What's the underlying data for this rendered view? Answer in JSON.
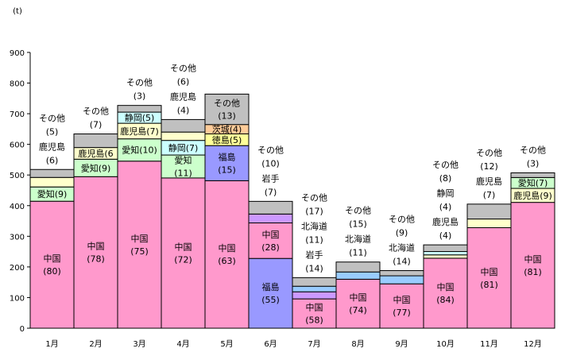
{
  "chart_data": {
    "type": "bar",
    "subtype": "variable-width stacked (marimekko)",
    "unit_label": "(t)",
    "ylim": [
      0,
      900
    ],
    "yticks": [
      "0",
      "100",
      "200",
      "300",
      "400",
      "500",
      "600",
      "700",
      "800",
      "900"
    ],
    "grid": false,
    "months": [
      {
        "label": "1月",
        "total": 518,
        "segments": [
          {
            "name": "中国",
            "share": 80,
            "share_text": "(80)",
            "label_pos": "inside",
            "color": "#ff99cc"
          },
          {
            "name": "愛知",
            "share": 9,
            "share_text": "(9)",
            "label_pos": "inside-left",
            "color": "#ccffcc"
          },
          {
            "name": "鹿児島",
            "share": 6,
            "share_text": "(6)",
            "label_pos": "above",
            "color": "#ffffcc"
          },
          {
            "name": "その他",
            "share": 5,
            "share_text": "(5)",
            "label_pos": "above",
            "color": "#c0c0c0"
          }
        ]
      },
      {
        "label": "2月",
        "total": 634,
        "segments": [
          {
            "name": "中国",
            "share": 78,
            "share_text": "(78)",
            "label_pos": "inside",
            "color": "#ff99cc"
          },
          {
            "name": "愛知",
            "share": 9,
            "share_text": "(9)",
            "label_pos": "inside-inline",
            "color": "#ccffcc"
          },
          {
            "name": "鹿児島",
            "share": 6,
            "share_text": "(6",
            "label_pos": "inside-inline",
            "color": "#ffffcc"
          },
          {
            "name": "その他",
            "share": 7,
            "share_text": "(7)",
            "label_pos": "above",
            "color": "#c0c0c0"
          }
        ]
      },
      {
        "label": "3月",
        "total": 727,
        "segments": [
          {
            "name": "中国",
            "share": 75,
            "share_text": "(75)",
            "label_pos": "inside",
            "color": "#ff99cc"
          },
          {
            "name": "愛知",
            "share": 10,
            "share_text": "(10)",
            "label_pos": "inside-inline",
            "color": "#ccffcc"
          },
          {
            "name": "鹿児島",
            "share": 7,
            "share_text": "(7)",
            "label_pos": "inside-inline",
            "color": "#ffffcc"
          },
          {
            "name": "静岡",
            "share": 5,
            "share_text": "(5)",
            "label_pos": "inside-inline",
            "color": "#ccffff"
          },
          {
            "name": "その他",
            "share": 3,
            "share_text": "(3)",
            "label_pos": "above",
            "color": "#c0c0c0"
          }
        ]
      },
      {
        "label": "4月",
        "total": 681,
        "segments": [
          {
            "name": "中国",
            "share": 72,
            "share_text": "(72)",
            "label_pos": "inside",
            "color": "#ff99cc"
          },
          {
            "name": "愛知",
            "share": 11,
            "share_text": "(11)",
            "label_pos": "inside",
            "color": "#ccffcc"
          },
          {
            "name": "静岡",
            "share": 7,
            "share_text": "(7)",
            "label_pos": "inside-inline",
            "color": "#ccffff"
          },
          {
            "name": "鹿児島",
            "share": 4,
            "share_text": "(4)",
            "label_pos": "above",
            "color": "#ffffcc"
          },
          {
            "name": "その他",
            "share": 6,
            "share_text": "(6)",
            "label_pos": "above",
            "color": "#c0c0c0"
          }
        ]
      },
      {
        "label": "5月",
        "total": 764,
        "segments": [
          {
            "name": "中国",
            "share": 63,
            "share_text": "(63)",
            "label_pos": "inside",
            "color": "#ff99cc"
          },
          {
            "name": "福島",
            "share": 15,
            "share_text": "(15)",
            "label_pos": "inside",
            "color": "#9999ff"
          },
          {
            "name": "徳島",
            "share": 5,
            "share_text": "(5)",
            "label_pos": "inside-inline",
            "color": "#ffff99"
          },
          {
            "name": "茨城",
            "share": 4,
            "share_text": "(4)",
            "label_pos": "inside-inline",
            "color": "#ffcc99"
          },
          {
            "name": "その他",
            "share": 13,
            "share_text": "(13)",
            "label_pos": "inside",
            "color": "#c0c0c0"
          }
        ]
      },
      {
        "label": "6月",
        "total": 414,
        "segments": [
          {
            "name": "福島",
            "share": 55,
            "share_text": "(55)",
            "label_pos": "inside",
            "color": "#9999ff"
          },
          {
            "name": "中国",
            "share": 28,
            "share_text": "(28)",
            "label_pos": "inside",
            "color": "#ff99cc"
          },
          {
            "name": "岩手",
            "share": 7,
            "share_text": "(7)",
            "label_pos": "above",
            "color": "#cc99ff"
          },
          {
            "name": "その他",
            "share": 10,
            "share_text": "(10)",
            "label_pos": "above",
            "color": "#c0c0c0"
          }
        ]
      },
      {
        "label": "7月",
        "total": 165,
        "segments": [
          {
            "name": "中国",
            "share": 58,
            "share_text": "(58)",
            "label_pos": "inside",
            "color": "#ff99cc"
          },
          {
            "name": "岩手",
            "share": 14,
            "share_text": "(14)",
            "label_pos": "above",
            "color": "#cc99ff"
          },
          {
            "name": "北海道",
            "share": 11,
            "share_text": "(11)",
            "label_pos": "above",
            "color": "#99ccff"
          },
          {
            "name": "その他",
            "share": 17,
            "share_text": "(17)",
            "label_pos": "above",
            "color": "#c0c0c0"
          }
        ]
      },
      {
        "label": "8月",
        "total": 216,
        "segments": [
          {
            "name": "中国",
            "share": 74,
            "share_text": "(74)",
            "label_pos": "inside",
            "color": "#ff99cc"
          },
          {
            "name": "北海道",
            "share": 11,
            "share_text": "(11)",
            "label_pos": "above",
            "color": "#99ccff"
          },
          {
            "name": "その他",
            "share": 15,
            "share_text": "(15)",
            "label_pos": "above",
            "color": "#c0c0c0"
          }
        ]
      },
      {
        "label": "9月",
        "total": 188,
        "segments": [
          {
            "name": "中国",
            "share": 77,
            "share_text": "(77)",
            "label_pos": "inside",
            "color": "#ff99cc"
          },
          {
            "name": "北海道",
            "share": 14,
            "share_text": "(14)",
            "label_pos": "above",
            "color": "#99ccff"
          },
          {
            "name": "その他",
            "share": 9,
            "share_text": "(9)",
            "label_pos": "above",
            "color": "#c0c0c0"
          }
        ]
      },
      {
        "label": "10月",
        "total": 272,
        "segments": [
          {
            "name": "中国",
            "share": 84,
            "share_text": "(84)",
            "label_pos": "inside",
            "color": "#ff99cc"
          },
          {
            "name": "鹿児島",
            "share": 4,
            "share_text": "(4)",
            "label_pos": "above",
            "color": "#ffffcc"
          },
          {
            "name": "静岡",
            "share": 4,
            "share_text": "(4)",
            "label_pos": "above",
            "color": "#ccffff"
          },
          {
            "name": "その他",
            "share": 8,
            "share_text": "(8)",
            "label_pos": "above",
            "color": "#c0c0c0"
          }
        ]
      },
      {
        "label": "11月",
        "total": 405,
        "segments": [
          {
            "name": "中国",
            "share": 81,
            "share_text": "(81)",
            "label_pos": "inside",
            "color": "#ff99cc"
          },
          {
            "name": "鹿児島",
            "share": 7,
            "share_text": "(7)",
            "label_pos": "above",
            "color": "#ffffcc"
          },
          {
            "name": "その他",
            "share": 12,
            "share_text": "(12)",
            "label_pos": "above",
            "color": "#c0c0c0"
          }
        ]
      },
      {
        "label": "12月",
        "total": 507,
        "segments": [
          {
            "name": "中国",
            "share": 81,
            "share_text": "(81)",
            "label_pos": "inside",
            "color": "#ff99cc"
          },
          {
            "name": "鹿児島",
            "share": 9,
            "share_text": "(9)",
            "label_pos": "inside-inline",
            "color": "#ffffcc"
          },
          {
            "name": "愛知",
            "share": 7,
            "share_text": "(7)",
            "label_pos": "inside-inline",
            "color": "#ccffcc"
          },
          {
            "name": "その他",
            "share": 3,
            "share_text": "(3)",
            "label_pos": "above",
            "color": "#c0c0c0"
          }
        ]
      }
    ]
  }
}
